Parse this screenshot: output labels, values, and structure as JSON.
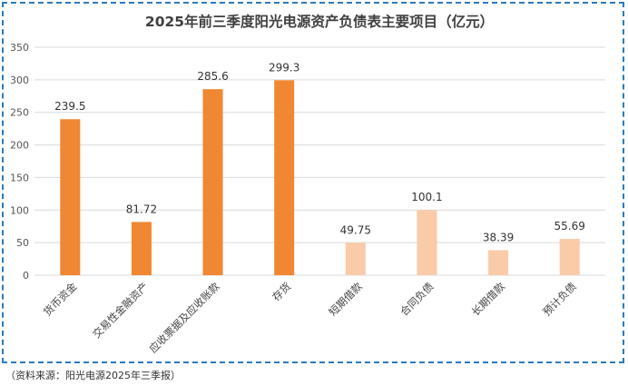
{
  "source_note": "（资料来源：阳光电源2025年三季报）",
  "chart_data": {
    "type": "bar",
    "title": "2025年前三季度阳光电源资产负债表主要项目（亿元）",
    "xlabel": "",
    "ylabel": "",
    "ylim": [
      0,
      350
    ],
    "yticks": [
      0,
      50,
      100,
      150,
      200,
      250,
      300,
      350
    ],
    "grid": true,
    "legend": "none",
    "categories": [
      "货币资金",
      "交易性金融资产",
      "应收票据及应收账款",
      "存货",
      "短期借款",
      "合同负债",
      "长期借款",
      "预计负债"
    ],
    "values": [
      239.5,
      81.72,
      285.6,
      299.3,
      49.75,
      100.1,
      38.39,
      55.69
    ],
    "value_labels": [
      "239.5",
      "81.72",
      "285.6",
      "299.3",
      "49.75",
      "100.1",
      "38.39",
      "55.69"
    ],
    "bar_colors": [
      "#f08732",
      "#f08732",
      "#f08732",
      "#f08732",
      "#f9cba8",
      "#f9cba8",
      "#f9cba8",
      "#f9cba8"
    ],
    "gridline_color": "#d9d9d9"
  }
}
